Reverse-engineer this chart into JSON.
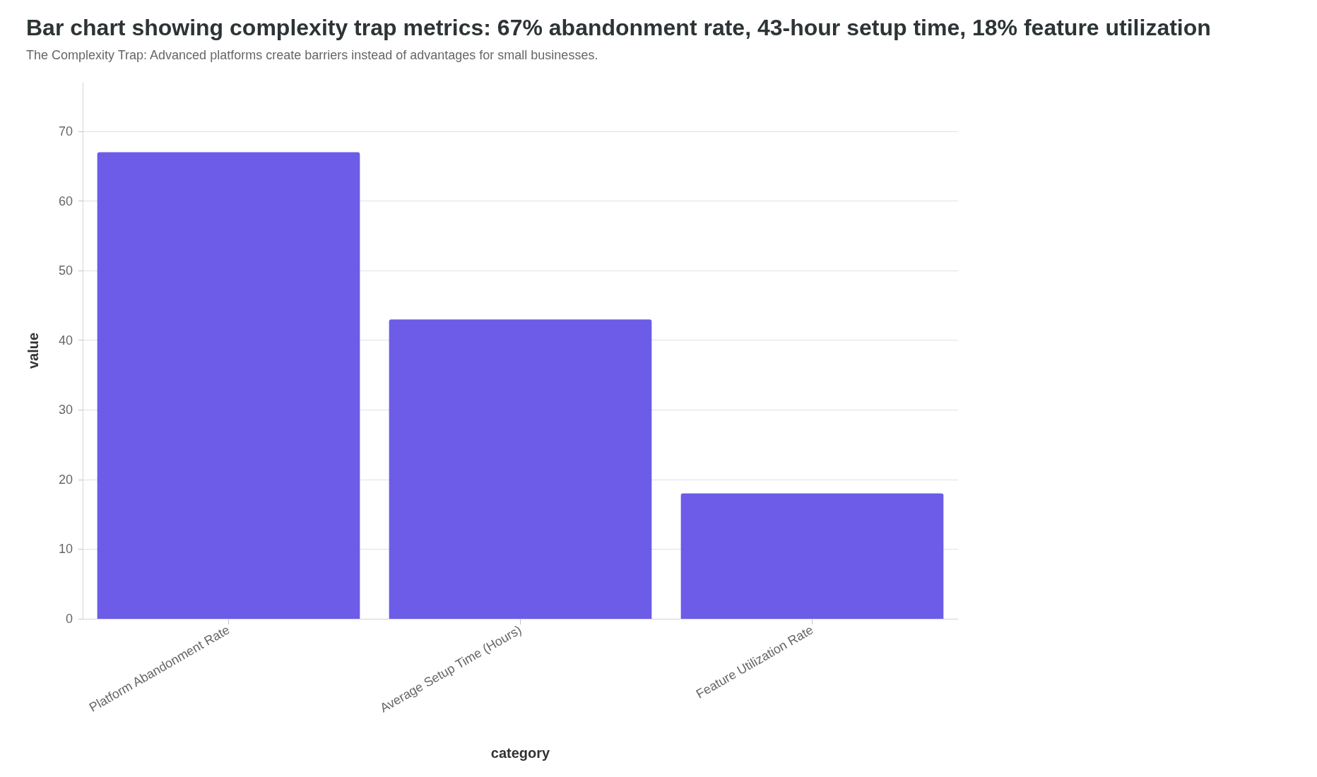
{
  "chart_data": {
    "type": "bar",
    "title": "Bar chart showing complexity trap metrics: 67% abandonment rate, 43-hour setup time, 18% feature utilization",
    "subtitle": "The Complexity Trap: Advanced platforms create barriers instead of advantages for small businesses.",
    "xlabel": "category",
    "ylabel": "value",
    "categories": [
      "Platform Abandonment Rate",
      "Average Setup Time (Hours)",
      "Feature Utilization Rate"
    ],
    "values": [
      67,
      43,
      18
    ],
    "color": "#6c5ce7",
    "ylim": [
      0,
      77
    ],
    "yticks": [
      0,
      10,
      20,
      30,
      40,
      50,
      60,
      70
    ],
    "grid": "y"
  }
}
